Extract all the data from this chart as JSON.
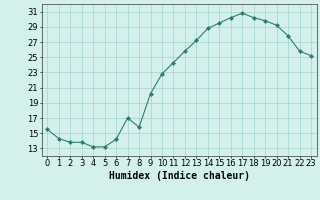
{
  "x": [
    0,
    1,
    2,
    3,
    4,
    5,
    6,
    7,
    8,
    9,
    10,
    11,
    12,
    13,
    14,
    15,
    16,
    17,
    18,
    19,
    20,
    21,
    22,
    23
  ],
  "y": [
    15.5,
    14.3,
    13.8,
    13.8,
    13.2,
    13.2,
    14.2,
    17.0,
    15.8,
    20.2,
    22.8,
    24.3,
    25.8,
    27.2,
    28.8,
    29.5,
    30.2,
    30.8,
    30.2,
    29.8,
    29.2,
    27.8,
    25.8,
    25.2
  ],
  "line_color": "#2e7d6e",
  "marker_color": "#2e7d6e",
  "bg_color": "#d4f0ec",
  "grid_color": "#a0d4cc",
  "xlabel": "Humidex (Indice chaleur)",
  "xlim": [
    -0.5,
    23.5
  ],
  "ylim": [
    12,
    32
  ],
  "yticks": [
    13,
    15,
    17,
    19,
    21,
    23,
    25,
    27,
    29,
    31
  ],
  "xticks": [
    0,
    1,
    2,
    3,
    4,
    5,
    6,
    7,
    8,
    9,
    10,
    11,
    12,
    13,
    14,
    15,
    16,
    17,
    18,
    19,
    20,
    21,
    22,
    23
  ],
  "xlabel_fontsize": 7,
  "tick_fontsize": 6
}
